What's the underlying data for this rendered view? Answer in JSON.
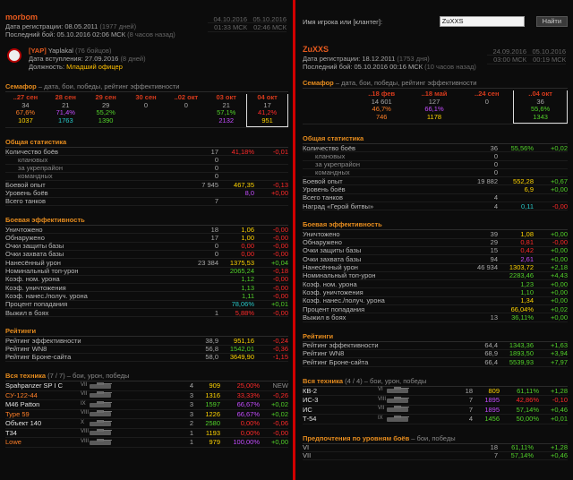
{
  "left": {
    "player": {
      "name": "morbom",
      "reg_label": "Дата регистрации:",
      "reg_date": "08.05.2011",
      "reg_days": "(1977 дней)",
      "last_label": "Последний бой:",
      "last_battle": "05.10.2016 02:06 МСК",
      "last_ago": "(8 часов назад)",
      "date_a": "04.10.2016",
      "date_b": "05.10.2016",
      "time_a": "01:33 МСК",
      "time_b": "02:46 МСК"
    },
    "clan": {
      "tag": "[YAP]",
      "name": "Yaplakal",
      "members": "(76 бойцов)",
      "join_label": "Дата вступления:",
      "join_date": "27.09.2016",
      "join_days": "(8 дней)",
      "role_label": "Должность:",
      "role": "Младший офицер"
    },
    "semaphore": {
      "title": "Семафор",
      "desc": " – дата, бои, победы, рейтинг эффективности",
      "cols": [
        {
          "h": "..27 сен",
          "a": "34",
          "b": "67,6%",
          "c": "1037",
          "bc": "c-ora",
          "cc": "c-yel"
        },
        {
          "h": "28 сен",
          "a": "21",
          "b": "71,4%",
          "c": "1763",
          "bc": "c-pur",
          "cc": "c-cya"
        },
        {
          "h": "29 сен",
          "a": "29",
          "b": "55,2%",
          "c": "1390",
          "bc": "c-grn",
          "cc": "c-grn"
        },
        {
          "h": "30 сен",
          "a": "0",
          "b": "",
          "c": "",
          "bc": "",
          "cc": ""
        },
        {
          "h": "..02 окт",
          "a": "0",
          "b": "",
          "c": "",
          "bc": "",
          "cc": ""
        },
        {
          "h": "03 окт",
          "a": "21",
          "b": "57,1%",
          "c": "2132",
          "bc": "c-grn",
          "cc": "c-pur"
        },
        {
          "h": "04 окт",
          "a": "17",
          "b": "41,2%",
          "c": "951",
          "bc": "c-red",
          "cc": "c-yel"
        }
      ]
    },
    "general": {
      "title": "Общая статистика",
      "rows": [
        {
          "l": "Количество боёв",
          "v1": "17",
          "v2": "41,18%",
          "v2c": "c-red",
          "v3": "-0,01",
          "v3c": "c-red",
          "sub": false
        },
        {
          "l": "клановых",
          "v1": "0",
          "v2": "",
          "v2c": "",
          "v3": "",
          "v3c": "",
          "sub": true
        },
        {
          "l": "за укрепрайон",
          "v1": "0",
          "v2": "",
          "v2c": "",
          "v3": "",
          "v3c": "",
          "sub": true
        },
        {
          "l": "командных",
          "v1": "0",
          "v2": "",
          "v2c": "",
          "v3": "",
          "v3c": "",
          "sub": true
        },
        {
          "l": "Боевой опыт",
          "v1": "7 945",
          "v2": "467,35",
          "v2c": "c-yel",
          "v3": "-0,13",
          "v3c": "c-red",
          "sub": false
        },
        {
          "l": "Уровень боёв",
          "v1": "",
          "v2": "8,0",
          "v2c": "c-pur",
          "v3": "+0,00",
          "v3c": "c-red",
          "sub": false
        },
        {
          "l": "Всего танков",
          "v1": "7",
          "v2": "",
          "v2c": "",
          "v3": "",
          "v3c": "",
          "sub": false
        }
      ]
    },
    "combat": {
      "title": "Боевая эффективность",
      "rows": [
        {
          "l": "Уничтожено",
          "v1": "18",
          "v2": "1,06",
          "v2c": "c-yel",
          "v3": "-0,00",
          "v3c": "c-red"
        },
        {
          "l": "Обнаружено",
          "v1": "17",
          "v2": "1,00",
          "v2c": "c-yel",
          "v3": "-0,00",
          "v3c": "c-red"
        },
        {
          "l": "Очки защиты базы",
          "v1": "0",
          "v2": "0,00",
          "v2c": "c-red",
          "v3": "-0,00",
          "v3c": "c-red"
        },
        {
          "l": "Очки захвата базы",
          "v1": "0",
          "v2": "0,00",
          "v2c": "c-red",
          "v3": "-0,00",
          "v3c": "c-red"
        },
        {
          "l": "Нанесённый урон",
          "v1": "23 384",
          "v2": "1375,53",
          "v2c": "c-yel",
          "v3": "+0,04",
          "v3c": "c-grn"
        },
        {
          "l": "Номинальный топ-урон",
          "v1": "",
          "v2": "2065,24",
          "v2c": "c-grn",
          "v3": "-0,18",
          "v3c": "c-red"
        },
        {
          "l": "Коэф. ном. урона",
          "v1": "",
          "v2": "1,12",
          "v2c": "c-grn",
          "v3": "-0,00",
          "v3c": "c-red"
        },
        {
          "l": "Коэф. уничтожения",
          "v1": "",
          "v2": "1,13",
          "v2c": "c-grn",
          "v3": "-0,00",
          "v3c": "c-red"
        },
        {
          "l": "Коэф. нанес./получ. урона",
          "v1": "",
          "v2": "1,11",
          "v2c": "c-grn",
          "v3": "-0,00",
          "v3c": "c-red"
        },
        {
          "l": "Процент попадания",
          "v1": "",
          "v2": "78,06%",
          "v2c": "c-cya",
          "v3": "+0,01",
          "v3c": "c-grn"
        },
        {
          "l": "Выжил в боях",
          "v1": "1",
          "v2": "5,88%",
          "v2c": "c-red",
          "v3": "-0,00",
          "v3c": "c-red"
        }
      ]
    },
    "ratings": {
      "title": "Рейтинги",
      "rows": [
        {
          "l": "Рейтинг эффективности",
          "v1": "38,9",
          "v2": "951,16",
          "v2c": "c-yel",
          "v3": "-0,24",
          "v3c": "c-red"
        },
        {
          "l": "Рейтинг WN8",
          "v1": "56,8",
          "v2": "1542,01",
          "v2c": "c-grn",
          "v3": "-0,36",
          "v3c": "c-red"
        },
        {
          "l": "Рейтинг Броне-сайта",
          "v1": "58,0",
          "v2": "3649,90",
          "v2c": "c-yel",
          "v3": "-1,15",
          "v3c": "c-red"
        }
      ]
    },
    "tanks": {
      "title": "Вся техника",
      "count": "(7 / 7)",
      "desc": " – бои, урон, победы",
      "rows": [
        {
          "n": "Spahpanzer SP I C",
          "nc": "c-wht",
          "t": "VII",
          "a": "4",
          "b": "909",
          "bc": "c-yel",
          "c": "25,00%",
          "cc": "c-red",
          "d": "NEW",
          "dc": "c-gry"
        },
        {
          "n": "СУ-122-44",
          "nc": "c-ora",
          "t": "VII",
          "a": "3",
          "b": "1316",
          "bc": "c-yel",
          "c": "33,33%",
          "cc": "c-red",
          "d": "-0,26",
          "dc": "c-red"
        },
        {
          "n": "M46 Patton",
          "nc": "c-wht",
          "t": "IX",
          "a": "3",
          "b": "1597",
          "bc": "c-grn",
          "c": "66,67%",
          "cc": "c-pur",
          "d": "+0,02",
          "dc": "c-grn"
        },
        {
          "n": "Type 59",
          "nc": "c-ora",
          "t": "VIII",
          "a": "3",
          "b": "1226",
          "bc": "c-yel",
          "c": "66,67%",
          "cc": "c-pur",
          "d": "+0,02",
          "dc": "c-grn"
        },
        {
          "n": "Объект 140",
          "nc": "c-wht",
          "t": "X",
          "a": "2",
          "b": "2580",
          "bc": "c-grn",
          "c": "0,00%",
          "cc": "c-red",
          "d": "-0,06",
          "dc": "c-red"
        },
        {
          "n": "T34",
          "nc": "c-wht",
          "t": "VIII",
          "a": "1",
          "b": "1193",
          "bc": "c-yel",
          "c": "0,00%",
          "cc": "c-red",
          "d": "-0,00",
          "dc": "c-red"
        },
        {
          "n": "Lowe",
          "nc": "c-ora",
          "t": "VIII",
          "a": "1",
          "b": "979",
          "bc": "c-yel",
          "c": "100,00%",
          "cc": "c-pur",
          "d": "+0,00",
          "dc": "c-grn"
        }
      ]
    }
  },
  "right": {
    "search": {
      "label": "Имя игрока или [клантег]:",
      "value": "ZuXXS",
      "button": "Найти"
    },
    "player": {
      "name": "ZuXXS",
      "reg_label": "Дата регистрации:",
      "reg_date": "18.12.2011",
      "reg_days": "(1753 дня)",
      "last_label": "Последний бой:",
      "last_battle": "05.10.2016 00:16 МСК",
      "last_ago": "(10 часов назад)",
      "date_a": "24.09.2016",
      "date_b": "05.10.2016",
      "time_a": "03:00 МСК",
      "time_b": "00:19 МСК"
    },
    "semaphore": {
      "title": "Семафор",
      "desc": " – дата, бои, победы, рейтинг эффективности",
      "cols": [
        {
          "h": "",
          "a": "",
          "b": "",
          "c": "",
          "bc": "",
          "cc": ""
        },
        {
          "h": "..18 фев",
          "a": "14 601",
          "b": "46,7%",
          "c": "746",
          "bc": "c-ora",
          "cc": "c-ora"
        },
        {
          "h": "..18 май",
          "a": "127",
          "b": "66,1%",
          "c": "1178",
          "bc": "c-pur",
          "cc": "c-yel"
        },
        {
          "h": "..24 сен",
          "a": "0",
          "b": "",
          "c": "",
          "bc": "",
          "cc": ""
        },
        {
          "h": "..04 окт",
          "a": "36",
          "b": "55,6%",
          "c": "1343",
          "bc": "c-grn",
          "cc": "c-grn"
        }
      ]
    },
    "general": {
      "title": "Общая статистика",
      "rows": [
        {
          "l": "Количество боёв",
          "v1": "36",
          "v2": "55,56%",
          "v2c": "c-grn",
          "v3": "+0,02",
          "v3c": "c-grn",
          "sub": false
        },
        {
          "l": "клановых",
          "v1": "0",
          "v2": "",
          "v2c": "",
          "v3": "",
          "v3c": "",
          "sub": true
        },
        {
          "l": "за укрепрайон",
          "v1": "0",
          "v2": "",
          "v2c": "",
          "v3": "",
          "v3c": "",
          "sub": true
        },
        {
          "l": "командных",
          "v1": "0",
          "v2": "",
          "v2c": "",
          "v3": "",
          "v3c": "",
          "sub": true
        },
        {
          "l": "Боевой опыт",
          "v1": "19 882",
          "v2": "552,28",
          "v2c": "c-yel",
          "v3": "+0,67",
          "v3c": "c-grn",
          "sub": false
        },
        {
          "l": "Уровень боёв",
          "v1": "",
          "v2": "6,9",
          "v2c": "c-yel",
          "v3": "+0,00",
          "v3c": "c-grn",
          "sub": false
        },
        {
          "l": "Всего танков",
          "v1": "4",
          "v2": "",
          "v2c": "",
          "v3": "",
          "v3c": "",
          "sub": false
        },
        {
          "l": "Наград «Герой битвы»",
          "v1": "4",
          "v2": "0,11",
          "v2c": "c-cya",
          "v3": "-0,00",
          "v3c": "c-red",
          "sub": false
        }
      ]
    },
    "combat": {
      "title": "Боевая эффективность",
      "rows": [
        {
          "l": "Уничтожено",
          "v1": "39",
          "v2": "1,08",
          "v2c": "c-yel",
          "v3": "+0,00",
          "v3c": "c-grn"
        },
        {
          "l": "Обнаружено",
          "v1": "29",
          "v2": "0,81",
          "v2c": "c-red",
          "v3": "-0,00",
          "v3c": "c-red"
        },
        {
          "l": "Очки защиты базы",
          "v1": "15",
          "v2": "0,42",
          "v2c": "c-red",
          "v3": "+0,00",
          "v3c": "c-grn"
        },
        {
          "l": "Очки захвата базы",
          "v1": "94",
          "v2": "2,61",
          "v2c": "c-pur",
          "v3": "+0,00",
          "v3c": "c-grn"
        },
        {
          "l": "Нанесённый урон",
          "v1": "46 934",
          "v2": "1303,72",
          "v2c": "c-yel",
          "v3": "+2,18",
          "v3c": "c-grn"
        },
        {
          "l": "Номинальный топ-урон",
          "v1": "",
          "v2": "2283,46",
          "v2c": "c-grn",
          "v3": "+4,43",
          "v3c": "c-grn"
        },
        {
          "l": "Коэф. ном. урона",
          "v1": "",
          "v2": "1,23",
          "v2c": "c-grn",
          "v3": "+0,00",
          "v3c": "c-grn"
        },
        {
          "l": "Коэф. уничтожения",
          "v1": "",
          "v2": "1,10",
          "v2c": "c-grn",
          "v3": "+0,00",
          "v3c": "c-grn"
        },
        {
          "l": "Коэф. нанес./получ. урона",
          "v1": "",
          "v2": "1,34",
          "v2c": "c-yel",
          "v3": "+0,00",
          "v3c": "c-grn"
        },
        {
          "l": "Процент попадания",
          "v1": "",
          "v2": "66,04%",
          "v2c": "c-yel",
          "v3": "+0,02",
          "v3c": "c-grn"
        },
        {
          "l": "Выжил в боях",
          "v1": "13",
          "v2": "36,11%",
          "v2c": "c-grn",
          "v3": "+0,00",
          "v3c": "c-grn"
        }
      ]
    },
    "ratings": {
      "title": "Рейтинги",
      "rows": [
        {
          "l": "Рейтинг эффективности",
          "v1": "64,4",
          "v2": "1343,36",
          "v2c": "c-grn",
          "v3": "+1,63",
          "v3c": "c-grn"
        },
        {
          "l": "Рейтинг WN8",
          "v1": "68,9",
          "v2": "1893,50",
          "v2c": "c-grn",
          "v3": "+3,94",
          "v3c": "c-grn"
        },
        {
          "l": "Рейтинг Броне-сайта",
          "v1": "66,4",
          "v2": "5539,93",
          "v2c": "c-grn",
          "v3": "+7,97",
          "v3c": "c-grn"
        }
      ]
    },
    "tanks": {
      "title": "Вся техника",
      "count": "(4 / 4)",
      "desc": " – бои, урон, победы",
      "rows": [
        {
          "n": "КВ-2",
          "nc": "c-wht",
          "t": "VI",
          "a": "18",
          "b": "809",
          "bc": "c-yel",
          "c": "61,11%",
          "cc": "c-grn",
          "d": "+1,28",
          "dc": "c-grn"
        },
        {
          "n": "ИС-3",
          "nc": "c-wht",
          "t": "VIII",
          "a": "7",
          "b": "1895",
          "bc": "c-pur",
          "c": "42,86%",
          "cc": "c-red",
          "d": "-0,10",
          "dc": "c-red"
        },
        {
          "n": "ИС",
          "nc": "c-wht",
          "t": "VII",
          "a": "7",
          "b": "1895",
          "bc": "c-pur",
          "c": "57,14%",
          "cc": "c-grn",
          "d": "+0,46",
          "dc": "c-grn"
        },
        {
          "n": "Т-54",
          "nc": "c-wht",
          "t": "IX",
          "a": "4",
          "b": "1456",
          "bc": "c-grn",
          "c": "50,00%",
          "cc": "c-grn",
          "d": "+0,01",
          "dc": "c-grn"
        }
      ]
    },
    "prefs": {
      "title": "Предпочтения по уровням боёв",
      "desc": " – бои, победы",
      "rows": [
        {
          "l": "VI",
          "v1": "18",
          "v2": "61,11%",
          "v2c": "c-grn",
          "v3": "+1,28",
          "v3c": "c-grn"
        },
        {
          "l": "VII",
          "v1": "7",
          "v2": "57,14%",
          "v2c": "c-grn",
          "v3": "+0,46",
          "v3c": "c-grn"
        }
      ]
    }
  }
}
